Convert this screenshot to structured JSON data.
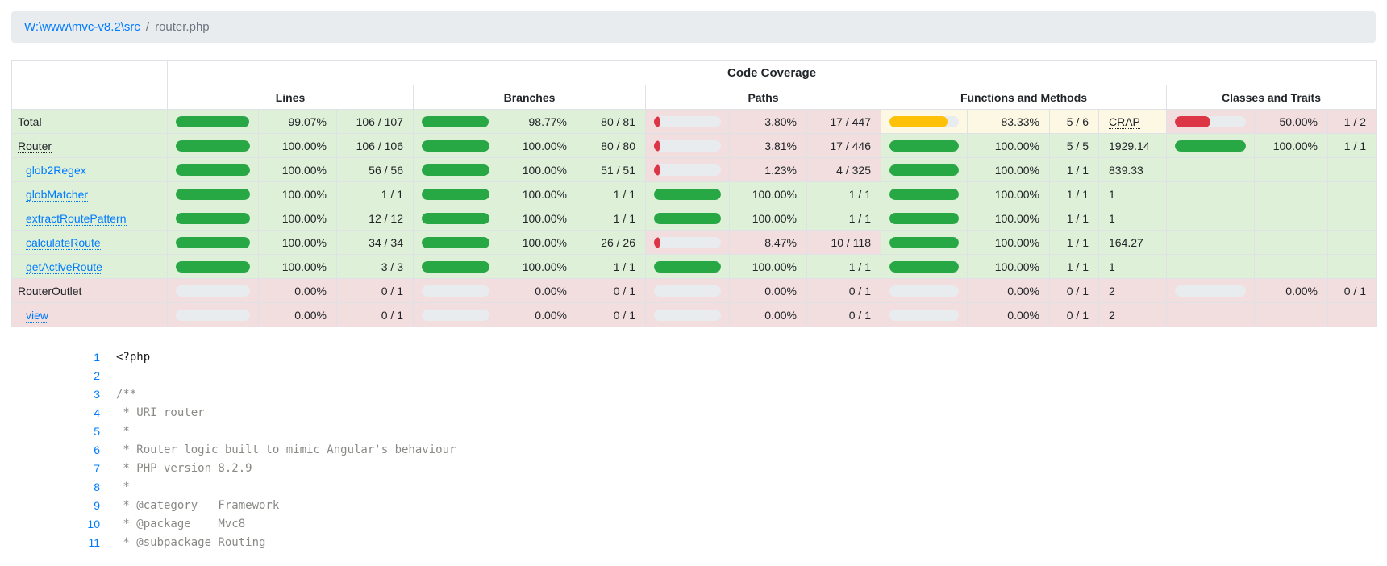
{
  "breadcrumb": {
    "path": "W:\\www\\mvc-v8.2\\src",
    "separator": "/",
    "file": "router.php"
  },
  "colors": {
    "success": "#28a745",
    "warning": "#ffc107",
    "danger": "#dc3545",
    "link": "#007bff",
    "bg_success": "#dff0d8",
    "bg_danger": "#f2dede",
    "bg_warning": "#fcf8e3"
  },
  "table": {
    "title": "Code Coverage",
    "groups": [
      {
        "label": "Lines"
      },
      {
        "label": "Branches"
      },
      {
        "label": "Paths"
      },
      {
        "label": "Functions and Methods"
      },
      {
        "label": "Classes and Traits"
      }
    ],
    "rows": [
      {
        "name": "Total",
        "nameStyle": "plain",
        "indent": false,
        "rowStatus": "success",
        "lines": {
          "pct": 99.07,
          "pctLabel": "99.07%",
          "count": "106 / 107",
          "status": "success"
        },
        "branches": {
          "pct": 98.77,
          "pctLabel": "98.77%",
          "count": "80 / 81",
          "status": "success"
        },
        "paths": {
          "pct": 3.8,
          "pctLabel": "3.80%",
          "count": "17 / 447",
          "status": "danger"
        },
        "methods": {
          "pct": 83.33,
          "pctLabel": "83.33%",
          "count": "5 / 6",
          "status": "warning",
          "crap": "CRAP",
          "crapIsHeader": true
        },
        "classes": {
          "pct": 50.0,
          "pctLabel": "50.00%",
          "count": "1 / 2",
          "status": "danger"
        }
      },
      {
        "name": "Router",
        "nameStyle": "abbr",
        "indent": false,
        "rowStatus": "success",
        "lines": {
          "pct": 100,
          "pctLabel": "100.00%",
          "count": "106 / 106",
          "status": "success"
        },
        "branches": {
          "pct": 100,
          "pctLabel": "100.00%",
          "count": "80 / 80",
          "status": "success"
        },
        "paths": {
          "pct": 3.81,
          "pctLabel": "3.81%",
          "count": "17 / 446",
          "status": "danger"
        },
        "methods": {
          "pct": 100,
          "pctLabel": "100.00%",
          "count": "5 / 5",
          "status": "success",
          "crap": "1929.14"
        },
        "classes": {
          "pct": 100,
          "pctLabel": "100.00%",
          "count": "1 / 1",
          "status": "success"
        }
      },
      {
        "name": "glob2Regex",
        "nameStyle": "link",
        "indent": true,
        "rowStatus": "success",
        "lines": {
          "pct": 100,
          "pctLabel": "100.00%",
          "count": "56 / 56",
          "status": "success"
        },
        "branches": {
          "pct": 100,
          "pctLabel": "100.00%",
          "count": "51 / 51",
          "status": "success"
        },
        "paths": {
          "pct": 1.23,
          "pctLabel": "1.23%",
          "count": "4 / 325",
          "status": "danger"
        },
        "methods": {
          "pct": 100,
          "pctLabel": "100.00%",
          "count": "1 / 1",
          "status": "success",
          "crap": "839.33"
        },
        "classes": {
          "empty": true,
          "status": "success"
        }
      },
      {
        "name": "globMatcher",
        "nameStyle": "link",
        "indent": true,
        "rowStatus": "success",
        "lines": {
          "pct": 100,
          "pctLabel": "100.00%",
          "count": "1 / 1",
          "status": "success"
        },
        "branches": {
          "pct": 100,
          "pctLabel": "100.00%",
          "count": "1 / 1",
          "status": "success"
        },
        "paths": {
          "pct": 100,
          "pctLabel": "100.00%",
          "count": "1 / 1",
          "status": "success"
        },
        "methods": {
          "pct": 100,
          "pctLabel": "100.00%",
          "count": "1 / 1",
          "status": "success",
          "crap": "1"
        },
        "classes": {
          "empty": true,
          "status": "success"
        }
      },
      {
        "name": "extractRoutePattern",
        "nameStyle": "link",
        "indent": true,
        "rowStatus": "success",
        "lines": {
          "pct": 100,
          "pctLabel": "100.00%",
          "count": "12 / 12",
          "status": "success"
        },
        "branches": {
          "pct": 100,
          "pctLabel": "100.00%",
          "count": "1 / 1",
          "status": "success"
        },
        "paths": {
          "pct": 100,
          "pctLabel": "100.00%",
          "count": "1 / 1",
          "status": "success"
        },
        "methods": {
          "pct": 100,
          "pctLabel": "100.00%",
          "count": "1 / 1",
          "status": "success",
          "crap": "1"
        },
        "classes": {
          "empty": true,
          "status": "success"
        }
      },
      {
        "name": "calculateRoute",
        "nameStyle": "link",
        "indent": true,
        "rowStatus": "success",
        "lines": {
          "pct": 100,
          "pctLabel": "100.00%",
          "count": "34 / 34",
          "status": "success"
        },
        "branches": {
          "pct": 100,
          "pctLabel": "100.00%",
          "count": "26 / 26",
          "status": "success"
        },
        "paths": {
          "pct": 8.47,
          "pctLabel": "8.47%",
          "count": "10 / 118",
          "status": "danger"
        },
        "methods": {
          "pct": 100,
          "pctLabel": "100.00%",
          "count": "1 / 1",
          "status": "success",
          "crap": "164.27"
        },
        "classes": {
          "empty": true,
          "status": "success"
        }
      },
      {
        "name": "getActiveRoute",
        "nameStyle": "link",
        "indent": true,
        "rowStatus": "success",
        "lines": {
          "pct": 100,
          "pctLabel": "100.00%",
          "count": "3 / 3",
          "status": "success"
        },
        "branches": {
          "pct": 100,
          "pctLabel": "100.00%",
          "count": "1 / 1",
          "status": "success"
        },
        "paths": {
          "pct": 100,
          "pctLabel": "100.00%",
          "count": "1 / 1",
          "status": "success"
        },
        "methods": {
          "pct": 100,
          "pctLabel": "100.00%",
          "count": "1 / 1",
          "status": "success",
          "crap": "1"
        },
        "classes": {
          "empty": true,
          "status": "success"
        }
      },
      {
        "name": "RouterOutlet",
        "nameStyle": "abbr",
        "indent": false,
        "rowStatus": "danger",
        "lines": {
          "pct": 0,
          "pctLabel": "0.00%",
          "count": "0 / 1",
          "status": "danger"
        },
        "branches": {
          "pct": 0,
          "pctLabel": "0.00%",
          "count": "0 / 1",
          "status": "danger"
        },
        "paths": {
          "pct": 0,
          "pctLabel": "0.00%",
          "count": "0 / 1",
          "status": "danger"
        },
        "methods": {
          "pct": 0,
          "pctLabel": "0.00%",
          "count": "0 / 1",
          "status": "danger",
          "crap": "2"
        },
        "classes": {
          "pct": 0,
          "pctLabel": "0.00%",
          "count": "0 / 1",
          "status": "danger"
        }
      },
      {
        "name": "view",
        "nameStyle": "link",
        "indent": true,
        "rowStatus": "danger",
        "lines": {
          "pct": 0,
          "pctLabel": "0.00%",
          "count": "0 / 1",
          "status": "danger"
        },
        "branches": {
          "pct": 0,
          "pctLabel": "0.00%",
          "count": "0 / 1",
          "status": "danger"
        },
        "paths": {
          "pct": 0,
          "pctLabel": "0.00%",
          "count": "0 / 1",
          "status": "danger"
        },
        "methods": {
          "pct": 0,
          "pctLabel": "0.00%",
          "count": "0 / 1",
          "status": "danger",
          "crap": "2"
        },
        "classes": {
          "empty": true,
          "status": "danger"
        }
      }
    ]
  },
  "code": {
    "lines": [
      {
        "num": "1",
        "text": "<?php",
        "type": "php"
      },
      {
        "num": "2",
        "text": "",
        "type": "blank"
      },
      {
        "num": "3",
        "text": "/**",
        "type": "comment"
      },
      {
        "num": "4",
        "text": " * URI router",
        "type": "comment"
      },
      {
        "num": "5",
        "text": " *",
        "type": "comment"
      },
      {
        "num": "6",
        "text": " * Router logic built to mimic Angular's behaviour",
        "type": "comment"
      },
      {
        "num": "7",
        "text": " * PHP version 8.2.9",
        "type": "comment"
      },
      {
        "num": "8",
        "text": " *",
        "type": "comment"
      },
      {
        "num": "9",
        "text": " * @category   Framework",
        "type": "comment"
      },
      {
        "num": "10",
        "text": " * @package    Mvc8",
        "type": "comment"
      },
      {
        "num": "11",
        "text": " * @subpackage Routing",
        "type": "comment"
      }
    ]
  }
}
